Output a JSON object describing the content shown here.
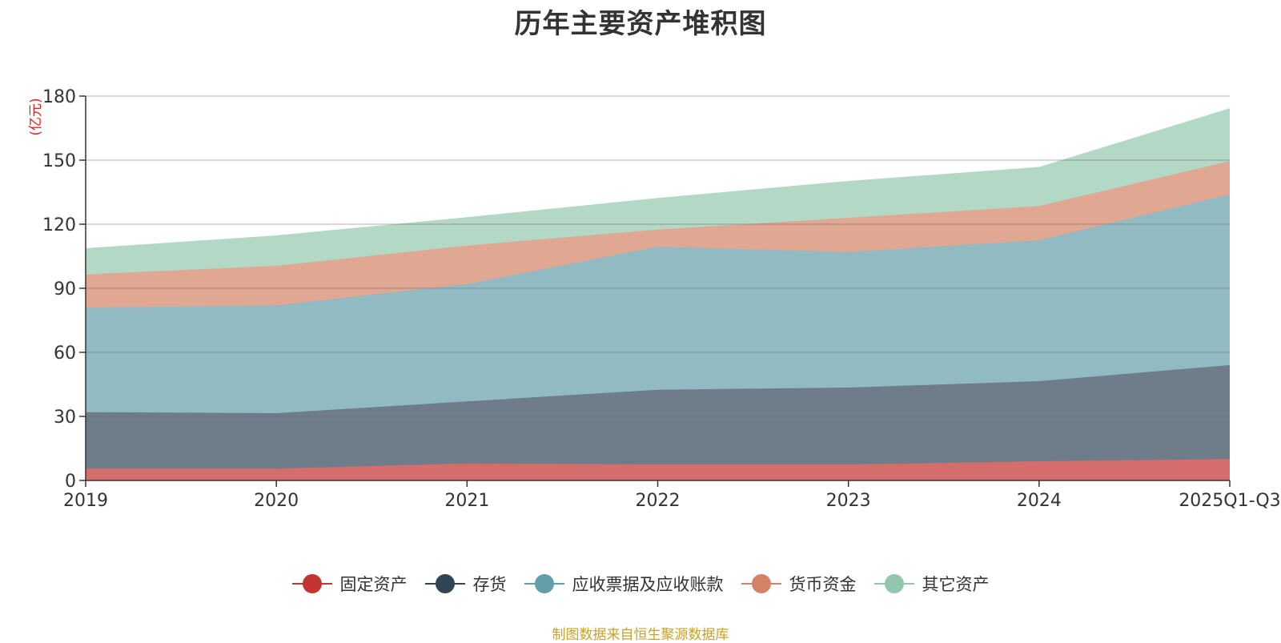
{
  "chart_data": {
    "type": "area",
    "stacked": true,
    "title": "历年主要资产堆积图",
    "ylabel": "(亿元)",
    "xlabel": "",
    "categories": [
      "2019",
      "2020",
      "2021",
      "2022",
      "2023",
      "2024",
      "2025Q1-Q3"
    ],
    "ylim": [
      0,
      180
    ],
    "yticks": [
      0,
      30,
      60,
      90,
      120,
      150,
      180
    ],
    "grid": true,
    "legend_position": "bottom",
    "series": [
      {
        "name": "固定资产",
        "color": "#c23531",
        "area_color": "#d46d6b",
        "values": [
          5.5,
          5.5,
          8,
          7.5,
          7.5,
          9,
          10
        ]
      },
      {
        "name": "存货",
        "color": "#2f4554",
        "area_color": "#6e7d89",
        "values": [
          26.5,
          26,
          29,
          35,
          36,
          37.5,
          44
        ]
      },
      {
        "name": "应收票据及应收账款",
        "color": "#61a0a8",
        "area_color": "#92bac2",
        "values": [
          49,
          50.5,
          55,
          67,
          63.5,
          66,
          80
        ]
      },
      {
        "name": "货币资金",
        "color": "#d48265",
        "area_color": "#e0a792",
        "values": [
          15.5,
          18.5,
          18,
          8,
          16,
          16,
          15.5
        ]
      },
      {
        "name": "其它资产",
        "color": "#91c7ae",
        "area_color": "#b3d8c5",
        "values": [
          12,
          14,
          13,
          14.5,
          17,
          18,
          24.5
        ]
      }
    ]
  },
  "source_note": "制图数据来自恒生聚源数据库"
}
